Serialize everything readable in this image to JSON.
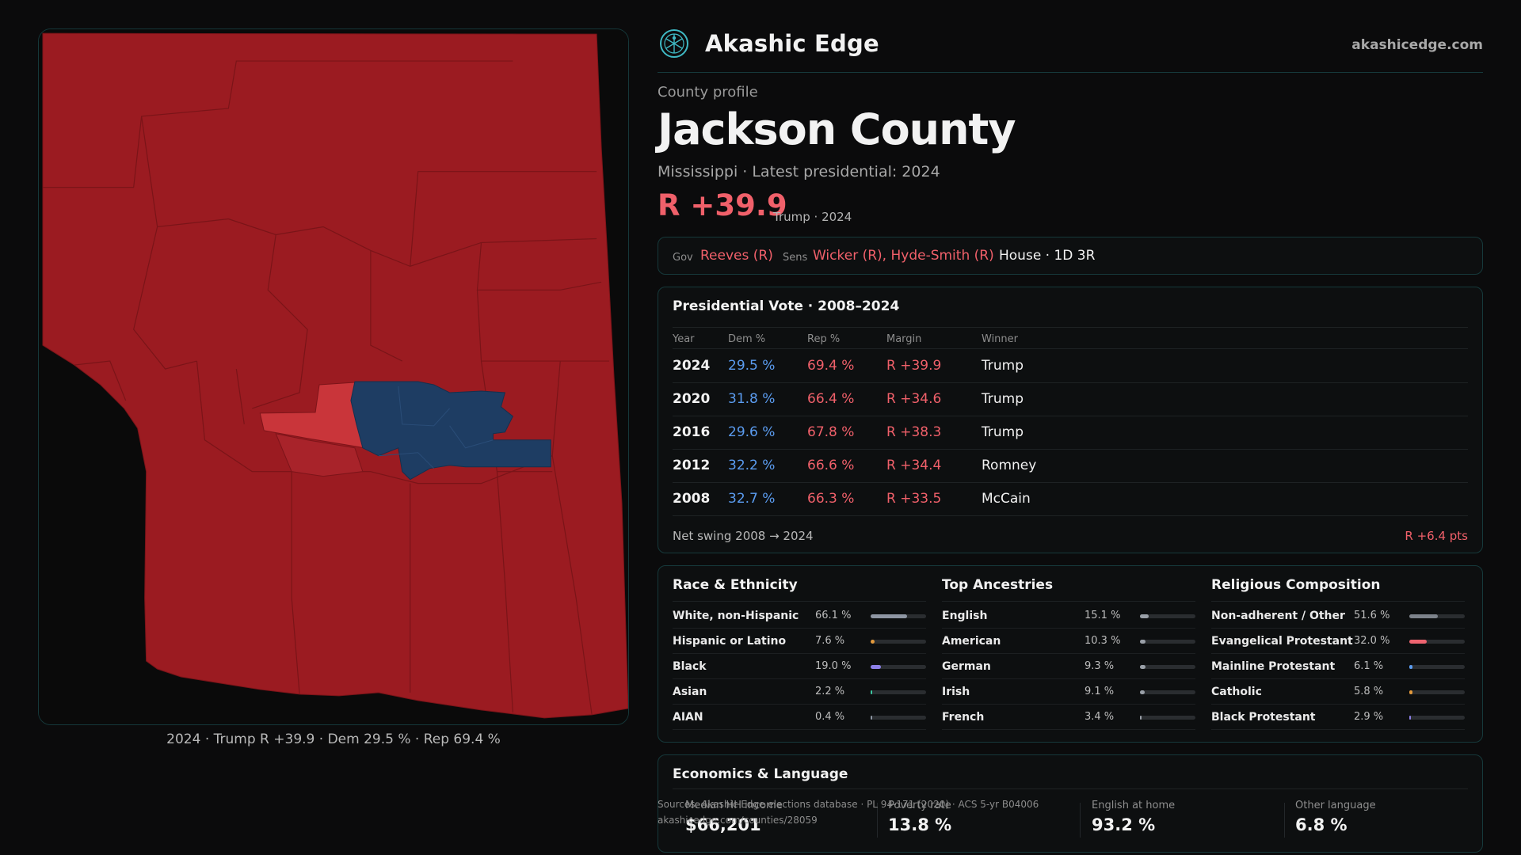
{
  "header": {
    "brand": "Akashic Edge",
    "domain": "akashicedge.com"
  },
  "profile": {
    "eyebrow": "County profile",
    "county": "Jackson County",
    "subtitle": "Mississippi · Latest presidential: 2024",
    "margin": "R +39.9",
    "margin_note": "Trump · 2024"
  },
  "officials": {
    "gov_label": "Gov",
    "gov": "Reeves (R)",
    "sens_label": "Sens",
    "sens": "Wicker (R), Hyde-Smith (R)",
    "house": "House · 1D 3R"
  },
  "presidential": {
    "title": "Presidential Vote · 2008–2024",
    "columns": [
      "Year",
      "Dem %",
      "Rep %",
      "Margin",
      "Winner"
    ],
    "rows": [
      {
        "year": "2024",
        "dem": "29.5 %",
        "rep": "69.4 %",
        "margin": "R +39.9",
        "winner": "Trump"
      },
      {
        "year": "2020",
        "dem": "31.8 %",
        "rep": "66.4 %",
        "margin": "R +34.6",
        "winner": "Trump"
      },
      {
        "year": "2016",
        "dem": "29.6 %",
        "rep": "67.8 %",
        "margin": "R +38.3",
        "winner": "Trump"
      },
      {
        "year": "2012",
        "dem": "32.2 %",
        "rep": "66.6 %",
        "margin": "R +34.4",
        "winner": "Romney"
      },
      {
        "year": "2008",
        "dem": "32.7 %",
        "rep": "66.3 %",
        "margin": "R +33.5",
        "winner": "McCain"
      }
    ],
    "swing_label": "Net swing 2008 → 2024",
    "swing_value": "R +6.4 pts"
  },
  "race": {
    "title": "Race & Ethnicity",
    "items": [
      {
        "name": "White, non-Hispanic",
        "pct": "66.1 %",
        "value": 66.1,
        "color": "#8e96a3"
      },
      {
        "name": "Hispanic or Latino",
        "pct": "7.6 %",
        "value": 7.6,
        "color": "#e39a3c"
      },
      {
        "name": "Black",
        "pct": "19.0 %",
        "value": 19.0,
        "color": "#8d80e8"
      },
      {
        "name": "Asian",
        "pct": "2.2 %",
        "value": 2.2,
        "color": "#3cc8a0"
      },
      {
        "name": "AIAN",
        "pct": "0.4 %",
        "value": 0.4,
        "color": "#8e96a3"
      }
    ]
  },
  "ancestry": {
    "title": "Top Ancestries",
    "items": [
      {
        "name": "English",
        "pct": "15.1 %",
        "value": 15.1,
        "color": "#9aa0a8"
      },
      {
        "name": "American",
        "pct": "10.3 %",
        "value": 10.3,
        "color": "#9aa0a8"
      },
      {
        "name": "German",
        "pct": "9.3 %",
        "value": 9.3,
        "color": "#9aa0a8"
      },
      {
        "name": "Irish",
        "pct": "9.1 %",
        "value": 9.1,
        "color": "#9aa0a8"
      },
      {
        "name": "French",
        "pct": "3.4 %",
        "value": 3.4,
        "color": "#9aa0a8"
      }
    ]
  },
  "religion": {
    "title": "Religious Composition",
    "items": [
      {
        "name": "Non-adherent / Other",
        "pct": "51.6 %",
        "value": 51.6,
        "color": "#7d838b"
      },
      {
        "name": "Evangelical Protestant",
        "pct": "32.0 %",
        "value": 32.0,
        "color": "#ee6470"
      },
      {
        "name": "Mainline Protestant",
        "pct": "6.1 %",
        "value": 6.1,
        "color": "#5b9cf0"
      },
      {
        "name": "Catholic",
        "pct": "5.8 %",
        "value": 5.8,
        "color": "#e39a3c"
      },
      {
        "name": "Black Protestant",
        "pct": "2.9 %",
        "value": 2.9,
        "color": "#8d80e8"
      }
    ]
  },
  "economics": {
    "title": "Economics & Language",
    "metrics": [
      {
        "label": "Median HH income",
        "value": "$66,201"
      },
      {
        "label": "Poverty rate",
        "value": "13.8 %"
      },
      {
        "label": "English at home",
        "value": "93.2 %"
      },
      {
        "label": "Other language",
        "value": "6.8 %"
      }
    ]
  },
  "sources": {
    "line1": "Sources: Akashic Edge elections database · PL 94-171 (2020) · ACS 5-yr B04006",
    "line2": "akashicedge.com/counties/28059"
  },
  "map": {
    "caption": "2024 · Trump R +39.9 · Dem 29.5 % · Rep 69.4 %",
    "colors": {
      "rep_strong": "#9b1b21",
      "rep_light": "#c9353a",
      "dem": "#1e3d63",
      "water": "#0a0a0a"
    }
  }
}
